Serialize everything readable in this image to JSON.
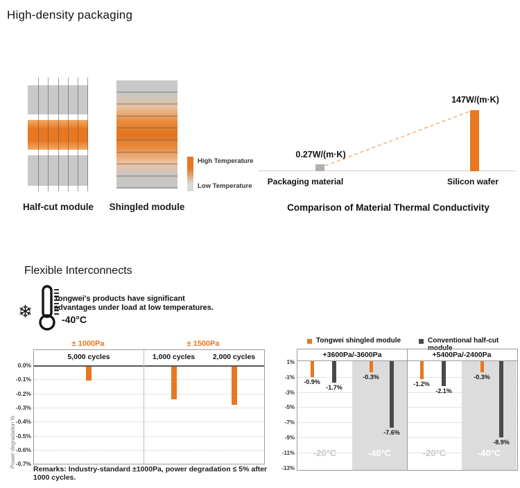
{
  "sections": {
    "packaging": {
      "title": "High-density packaging",
      "halfcut_label": "Half-cut module",
      "shingled_label": "Shingled module",
      "legend_high": "High Temperature",
      "legend_low": "Low Temperature"
    },
    "interconnects": {
      "title": "Flexible Interconnects",
      "callout_line1": "Tongwei's products have significant",
      "callout_line2": "advantages under load at low temperatures.",
      "callout_temp": "-40°C",
      "remarks": "Remarks: Industry-standard ±1000Pa, power degradation ≤ 5% after 1000 cycles."
    }
  },
  "icons": {
    "snowflake_icon": "❄"
  },
  "colors": {
    "accent_orange": "#E87722",
    "bar_gray": "#4A4A4A",
    "panel_gray": "#DCDCDC",
    "marker_gray": "#B0B0B0",
    "dashed_orange": "#F0B078"
  },
  "chart_data": [
    {
      "id": "thermal_conductivity",
      "type": "bar",
      "title": "Comparison of Material Thermal Conductivity",
      "categories": [
        "Packaging material",
        "Silicon wafer"
      ],
      "values": [
        0.27,
        147
      ],
      "value_labels": [
        "0.27W/(m·K)",
        "147W/(m·K)"
      ],
      "unit": "W/(m·K)",
      "annotations": [
        "dashed orange connector from packaging-material marker to silicon-wafer bar top"
      ]
    },
    {
      "id": "load_cycles_degradation",
      "type": "bar",
      "pressure_headers": [
        "± 1000Pa",
        "± 1500Pa"
      ],
      "categories": [
        "5,000 cycles",
        "1,000 cycles",
        "2,000 cycles"
      ],
      "values": [
        -0.1,
        -0.23,
        -0.27
      ],
      "ylabel": "Power degradation %",
      "yticks": [
        "0.0%",
        "-0.1%",
        "-0.2%",
        "-0.3%",
        "-0.4%",
        "-0.5%",
        "-0.6%",
        "-0.7%"
      ],
      "ylim": [
        -0.7,
        0
      ],
      "grid": true
    },
    {
      "id": "low_temp_load_comparison",
      "type": "bar",
      "legend": [
        "Tongwei shingled module",
        "Conventional half-cut module"
      ],
      "group_headers": [
        "+3600Pa/-3600Pa",
        "+5400Pa/-2400Pa"
      ],
      "temp_labels": [
        "-20°C",
        "-40°C",
        "-20°C",
        "-40°C"
      ],
      "series": [
        {
          "name": "Tongwei shingled module",
          "values": [
            -0.9,
            -0.3,
            -1.2,
            -0.3
          ]
        },
        {
          "name": "Conventional half-cut module",
          "values": [
            -1.7,
            -7.6,
            -2.1,
            -8.9
          ]
        }
      ],
      "yticks": [
        "1%",
        "-1%",
        "-3%",
        "-5%",
        "-7%",
        "-9%",
        "-11%",
        "-13%"
      ],
      "ylim": [
        -13,
        1
      ],
      "grid": true
    }
  ]
}
